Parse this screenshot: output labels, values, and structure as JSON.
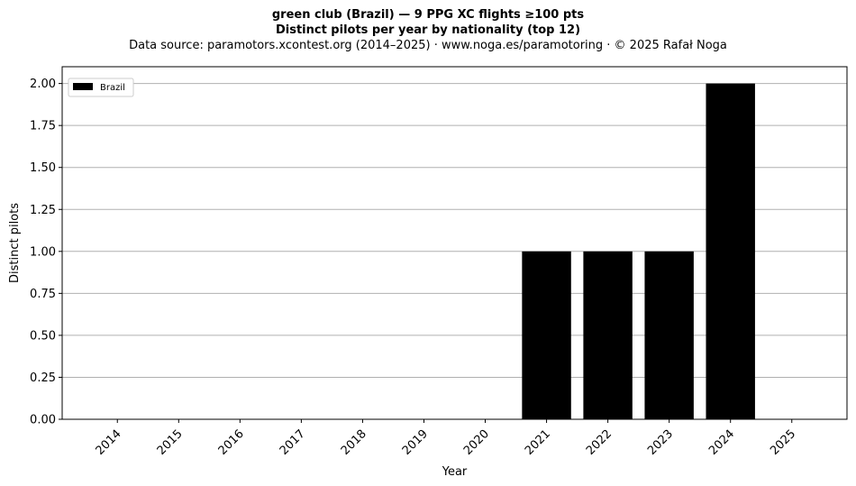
{
  "header": {
    "title": "green club (Brazil)  —  9 PPG XC flights ≥100 pts",
    "subtitle": "Distinct pilots per year by nationality (top 12)",
    "source": "Data source: paramotors.xcontest.org (2014–2025)  ·  www.noga.es/paramotoring  ·  © 2025 Rafał Noga"
  },
  "chart_data": {
    "type": "bar",
    "categories": [
      "2014",
      "2015",
      "2016",
      "2017",
      "2018",
      "2019",
      "2020",
      "2021",
      "2022",
      "2023",
      "2024",
      "2025"
    ],
    "series": [
      {
        "name": "Brazil",
        "values": [
          0,
          0,
          0,
          0,
          0,
          0,
          0,
          1,
          1,
          1,
          2,
          0
        ],
        "color": "#000000"
      }
    ],
    "xlabel": "Year",
    "ylabel": "Distinct pilots",
    "ylim": [
      0,
      2.1
    ],
    "yticks": [
      "0.00",
      "0.25",
      "0.50",
      "0.75",
      "1.00",
      "1.25",
      "1.50",
      "1.75",
      "2.00"
    ],
    "grid": "horizontal",
    "legend_position": "top-left"
  }
}
